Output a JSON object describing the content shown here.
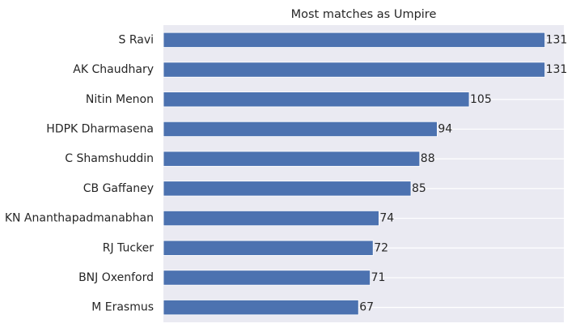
{
  "chart_data": {
    "type": "bar",
    "orientation": "horizontal",
    "title": "Most matches as Umpire",
    "xlabel": "",
    "ylabel": "",
    "categories": [
      "S Ravi",
      "AK Chaudhary",
      "Nitin Menon",
      "HDPK Dharmasena",
      "C Shamshuddin",
      "CB Gaffaney",
      "KN Ananthapadmanabhan",
      "RJ Tucker",
      "BNJ Oxenford",
      "M Erasmus"
    ],
    "values": [
      131,
      131,
      105,
      94,
      88,
      85,
      74,
      72,
      71,
      67
    ],
    "xlim": [
      0,
      137.5
    ],
    "grid": true,
    "bar_color": "#4c72b0",
    "background_color": "#eaeaf2",
    "data_labels": true
  }
}
